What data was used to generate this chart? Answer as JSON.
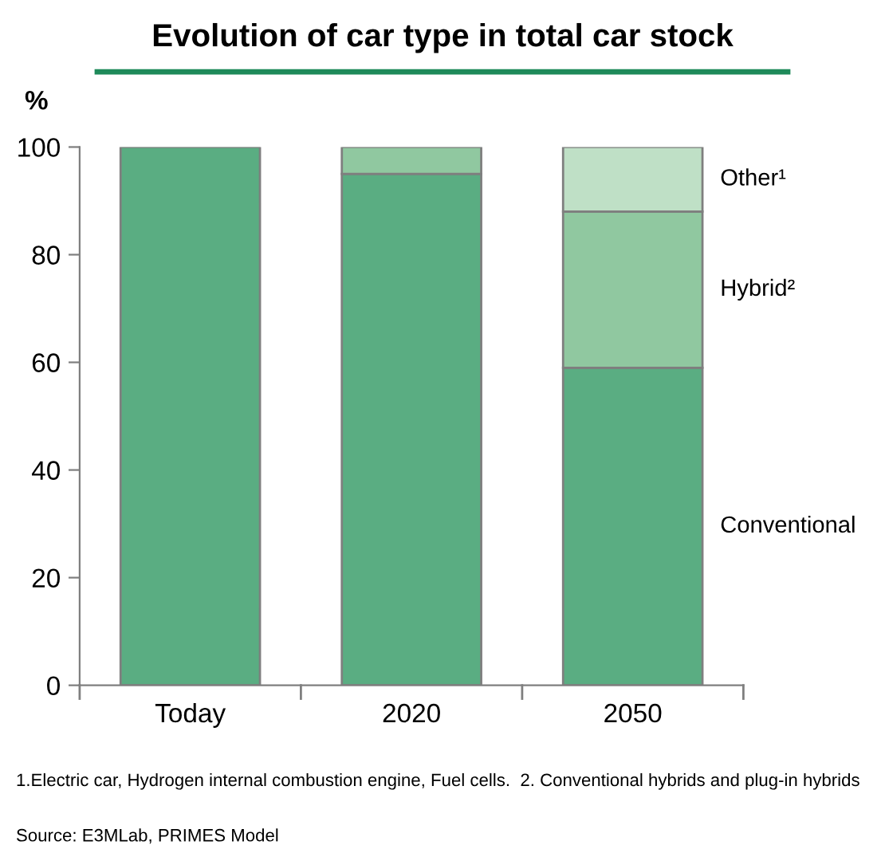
{
  "chart_data": {
    "type": "bar",
    "title": "Evolution of car type in total car stock",
    "ylabel": "%",
    "categories": [
      "Today",
      "2020",
      "2050"
    ],
    "stacked": true,
    "series": [
      {
        "name": "Conventional",
        "color": "#5aad82",
        "values": [
          100,
          95,
          59
        ]
      },
      {
        "name": "Hybrid²",
        "color": "#90c8a0",
        "values": [
          null,
          5,
          29
        ]
      },
      {
        "name": "Other¹",
        "color": "#bfe0c6",
        "values": [
          null,
          null,
          12
        ]
      }
    ],
    "ylim": [
      0,
      100
    ],
    "yticks": [
      0,
      20,
      40,
      60,
      80,
      100
    ],
    "grid": false,
    "legend": "right",
    "annotations": [
      "1.Electric car, Hydrogen internal combustion engine, Fuel cells.  2. Conventional hybrids and plug-in hybrids",
      "Source: E3MLab, PRIMES Model"
    ]
  }
}
